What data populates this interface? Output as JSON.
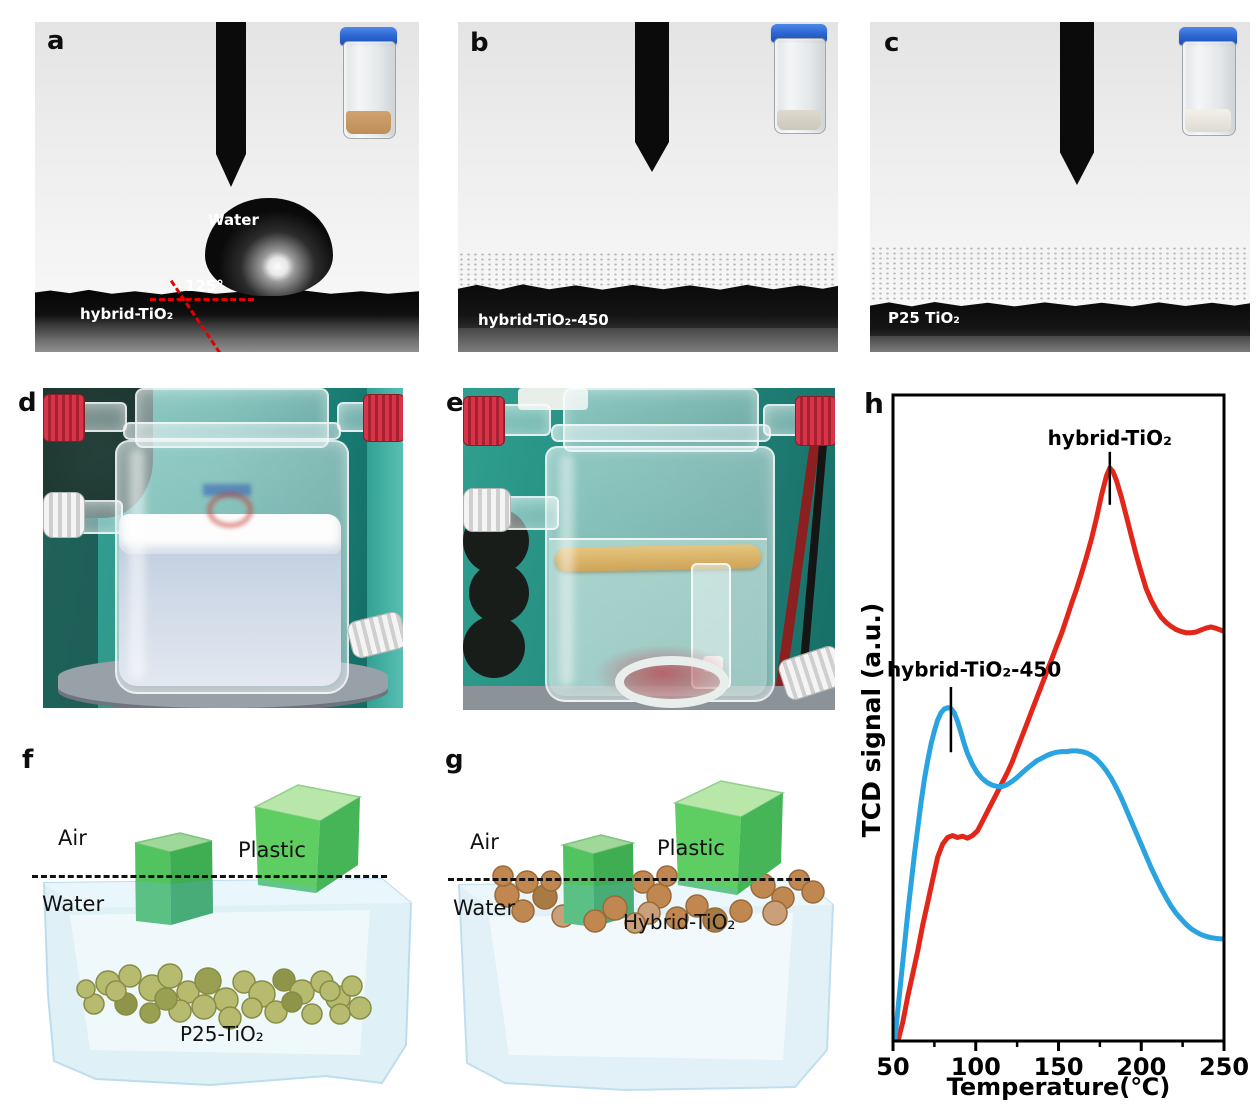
{
  "figure": {
    "panels": {
      "a": {
        "letter": "a",
        "droplet_label": "Water",
        "contact_angle": "125°",
        "surface_label": "hybrid-TiO₂"
      },
      "b": {
        "letter": "b",
        "surface_label": "hybrid-TiO₂-450"
      },
      "c": {
        "letter": "c",
        "surface_label": "P25 TiO₂"
      },
      "d": {
        "letter": "d"
      },
      "e": {
        "letter": "e"
      },
      "f": {
        "letter": "f",
        "air_label": "Air",
        "water_label": "Water",
        "plastic_label": "Plastic",
        "particles_label": "P25-TiO₂"
      },
      "g": {
        "letter": "g",
        "air_label": "Air",
        "water_label": "Water",
        "plastic_label": "Plastic",
        "particles_label": "Hybrid-TiO₂"
      },
      "h": {
        "letter": "h"
      }
    },
    "icons": {
      "vial_a": "sample-vial-tan-powder-icon",
      "vial_b": "sample-vial-offwhite-powder-icon",
      "vial_c": "sample-vial-white-powder-icon"
    },
    "colors": {
      "contact_angle_guide": "#e40000",
      "vial_cap_blue": "#2b63cf",
      "reactor_cap_red": "#c02538",
      "plastic_green": "#5ecd62",
      "p25_particle_olive": "#b7bb70",
      "hybrid_particle_brown": "#c08850"
    }
  },
  "chart_data": {
    "type": "line",
    "title": "",
    "xlabel": "Temperature(℃)",
    "ylabel": "TCD signal (a.u.)",
    "xlim": [
      50,
      250
    ],
    "ylim": [
      0,
      1
    ],
    "y_units": "a.u. (normalized 0-1, no y ticks shown)",
    "x_major_ticks": [
      50,
      100,
      150,
      200,
      250
    ],
    "x_minor_ticks": [
      75,
      125,
      175,
      225
    ],
    "grid": false,
    "legend_position": "inline annotations",
    "series": [
      {
        "name": "hybrid-TiO₂",
        "color": "#e2271a",
        "peak_temperature": 181,
        "points": [
          [
            53,
            0
          ],
          [
            56,
            0.03
          ],
          [
            59,
            0.07
          ],
          [
            62,
            0.105
          ],
          [
            65,
            0.14
          ],
          [
            68,
            0.18
          ],
          [
            71,
            0.215
          ],
          [
            74,
            0.25
          ],
          [
            77,
            0.285
          ],
          [
            80,
            0.305
          ],
          [
            83,
            0.315
          ],
          [
            86,
            0.318
          ],
          [
            89,
            0.315
          ],
          [
            92,
            0.317
          ],
          [
            95,
            0.314
          ],
          [
            98,
            0.318
          ],
          [
            101,
            0.325
          ],
          [
            104,
            0.34
          ],
          [
            107,
            0.355
          ],
          [
            110,
            0.37
          ],
          [
            113,
            0.385
          ],
          [
            116,
            0.4
          ],
          [
            119,
            0.415
          ],
          [
            122,
            0.432
          ],
          [
            125,
            0.452
          ],
          [
            128,
            0.472
          ],
          [
            131,
            0.492
          ],
          [
            134,
            0.512
          ],
          [
            137,
            0.532
          ],
          [
            140,
            0.552
          ],
          [
            143,
            0.572
          ],
          [
            146,
            0.592
          ],
          [
            149,
            0.612
          ],
          [
            152,
            0.632
          ],
          [
            155,
            0.655
          ],
          [
            158,
            0.678
          ],
          [
            161,
            0.7
          ],
          [
            164,
            0.725
          ],
          [
            167,
            0.75
          ],
          [
            170,
            0.778
          ],
          [
            173,
            0.81
          ],
          [
            176,
            0.845
          ],
          [
            179,
            0.875
          ],
          [
            181,
            0.887
          ],
          [
            183,
            0.881
          ],
          [
            185,
            0.868
          ],
          [
            188,
            0.842
          ],
          [
            191,
            0.812
          ],
          [
            194,
            0.782
          ],
          [
            197,
            0.752
          ],
          [
            200,
            0.725
          ],
          [
            203,
            0.7
          ],
          [
            206,
            0.682
          ],
          [
            209,
            0.668
          ],
          [
            212,
            0.656
          ],
          [
            215,
            0.648
          ],
          [
            218,
            0.642
          ],
          [
            221,
            0.637
          ],
          [
            224,
            0.634
          ],
          [
            227,
            0.632
          ],
          [
            230,
            0.632
          ],
          [
            233,
            0.633
          ],
          [
            236,
            0.636
          ],
          [
            239,
            0.639
          ],
          [
            242,
            0.641
          ],
          [
            245,
            0.639
          ],
          [
            248,
            0.636
          ],
          [
            250,
            0.634
          ]
        ]
      },
      {
        "name": "hybrid-TiO₂-450",
        "color": "#2aa3e1",
        "peak_temperature": 85,
        "points": [
          [
            51,
            0
          ],
          [
            53,
            0.05
          ],
          [
            55,
            0.1
          ],
          [
            57,
            0.15
          ],
          [
            59,
            0.2
          ],
          [
            61,
            0.245
          ],
          [
            63,
            0.29
          ],
          [
            65,
            0.33
          ],
          [
            67,
            0.37
          ],
          [
            69,
            0.405
          ],
          [
            71,
            0.435
          ],
          [
            73,
            0.46
          ],
          [
            75,
            0.48
          ],
          [
            77,
            0.497
          ],
          [
            79,
            0.508
          ],
          [
            81,
            0.514
          ],
          [
            83,
            0.516
          ],
          [
            85,
            0.515
          ],
          [
            87,
            0.508
          ],
          [
            89,
            0.495
          ],
          [
            91,
            0.478
          ],
          [
            93,
            0.46
          ],
          [
            95,
            0.445
          ],
          [
            98,
            0.428
          ],
          [
            101,
            0.415
          ],
          [
            104,
            0.406
          ],
          [
            107,
            0.4
          ],
          [
            110,
            0.396
          ],
          [
            113,
            0.394
          ],
          [
            116,
            0.394
          ],
          [
            119,
            0.397
          ],
          [
            122,
            0.402
          ],
          [
            125,
            0.408
          ],
          [
            128,
            0.415
          ],
          [
            131,
            0.422
          ],
          [
            134,
            0.428
          ],
          [
            137,
            0.434
          ],
          [
            140,
            0.438
          ],
          [
            143,
            0.442
          ],
          [
            146,
            0.445
          ],
          [
            149,
            0.447
          ],
          [
            152,
            0.448
          ],
          [
            155,
            0.448
          ],
          [
            158,
            0.449
          ],
          [
            161,
            0.449
          ],
          [
            164,
            0.448
          ],
          [
            167,
            0.446
          ],
          [
            170,
            0.442
          ],
          [
            173,
            0.436
          ],
          [
            176,
            0.428
          ],
          [
            179,
            0.418
          ],
          [
            182,
            0.406
          ],
          [
            185,
            0.392
          ],
          [
            188,
            0.376
          ],
          [
            191,
            0.358
          ],
          [
            194,
            0.34
          ],
          [
            197,
            0.322
          ],
          [
            200,
            0.304
          ],
          [
            203,
            0.286
          ],
          [
            206,
            0.268
          ],
          [
            209,
            0.252
          ],
          [
            212,
            0.236
          ],
          [
            215,
            0.222
          ],
          [
            218,
            0.209
          ],
          [
            221,
            0.198
          ],
          [
            224,
            0.189
          ],
          [
            227,
            0.181
          ],
          [
            230,
            0.174
          ],
          [
            233,
            0.169
          ],
          [
            236,
            0.165
          ],
          [
            239,
            0.162
          ],
          [
            242,
            0.16
          ],
          [
            245,
            0.159
          ],
          [
            248,
            0.158
          ],
          [
            250,
            0.158
          ]
        ]
      }
    ],
    "annotations": [
      {
        "text": "hybrid-TiO₂",
        "label_x": 181,
        "label_y": 0.935,
        "marker": {
          "x": 181,
          "y1": 0.83,
          "y2": 0.912
        }
      },
      {
        "text": "hybrid-TiO₂-450",
        "label_x": 99,
        "label_y": 0.577,
        "marker": {
          "x": 85,
          "y1": 0.447,
          "y2": 0.548
        }
      }
    ]
  }
}
